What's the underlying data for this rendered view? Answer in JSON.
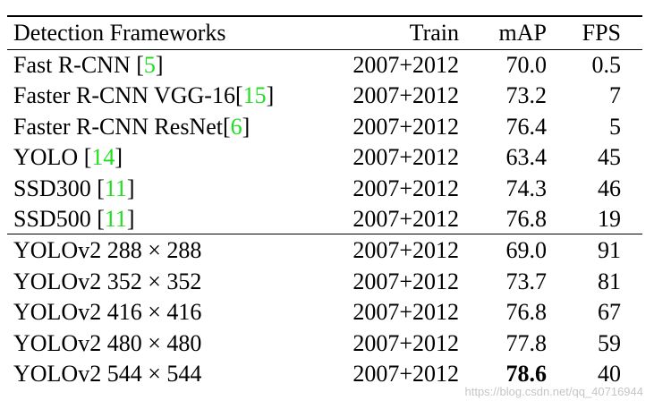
{
  "table": {
    "header": [
      "Detection Frameworks",
      "Train",
      "mAP",
      "FPS"
    ],
    "groups": [
      [
        {
          "name": [
            "Fast R-CNN [",
            "5",
            "]"
          ],
          "train": "2007+2012",
          "map": "70.0",
          "fps": "0.5"
        },
        {
          "name": [
            "Faster R-CNN VGG-16[",
            "15",
            "]"
          ],
          "train": "2007+2012",
          "map": "73.2",
          "fps": "7"
        },
        {
          "name": [
            "Faster R-CNN ResNet[",
            "6",
            "]"
          ],
          "train": "2007+2012",
          "map": "76.4",
          "fps": "5"
        },
        {
          "name": [
            "YOLO [",
            "14",
            "]"
          ],
          "train": "2007+2012",
          "map": "63.4",
          "fps": "45"
        },
        {
          "name": [
            "SSD300 [",
            "11",
            "]"
          ],
          "train": "2007+2012",
          "map": "74.3",
          "fps": "46"
        },
        {
          "name": [
            "SSD500 [",
            "11",
            "]"
          ],
          "train": "2007+2012",
          "map": "76.8",
          "fps": "19"
        }
      ],
      [
        {
          "name": [
            "YOLOv2 288 × 288"
          ],
          "train": "2007+2012",
          "map": "69.0",
          "fps": "91"
        },
        {
          "name": [
            "YOLOv2 352 × 352"
          ],
          "train": "2007+2012",
          "map": "73.7",
          "fps": "81"
        },
        {
          "name": [
            "YOLOv2 416 × 416"
          ],
          "train": "2007+2012",
          "map": "76.8",
          "fps": "67"
        },
        {
          "name": [
            "YOLOv2 480 × 480"
          ],
          "train": "2007+2012",
          "map": "77.8",
          "fps": "59"
        },
        {
          "name": [
            "YOLOv2 544 × 544"
          ],
          "train": "2007+2012",
          "map": "78.6",
          "fps": "40",
          "bold": [
            "map"
          ]
        }
      ]
    ],
    "cite_color": "#22dd22"
  },
  "watermark": "https://blog.csdn.net/qq_40716944"
}
